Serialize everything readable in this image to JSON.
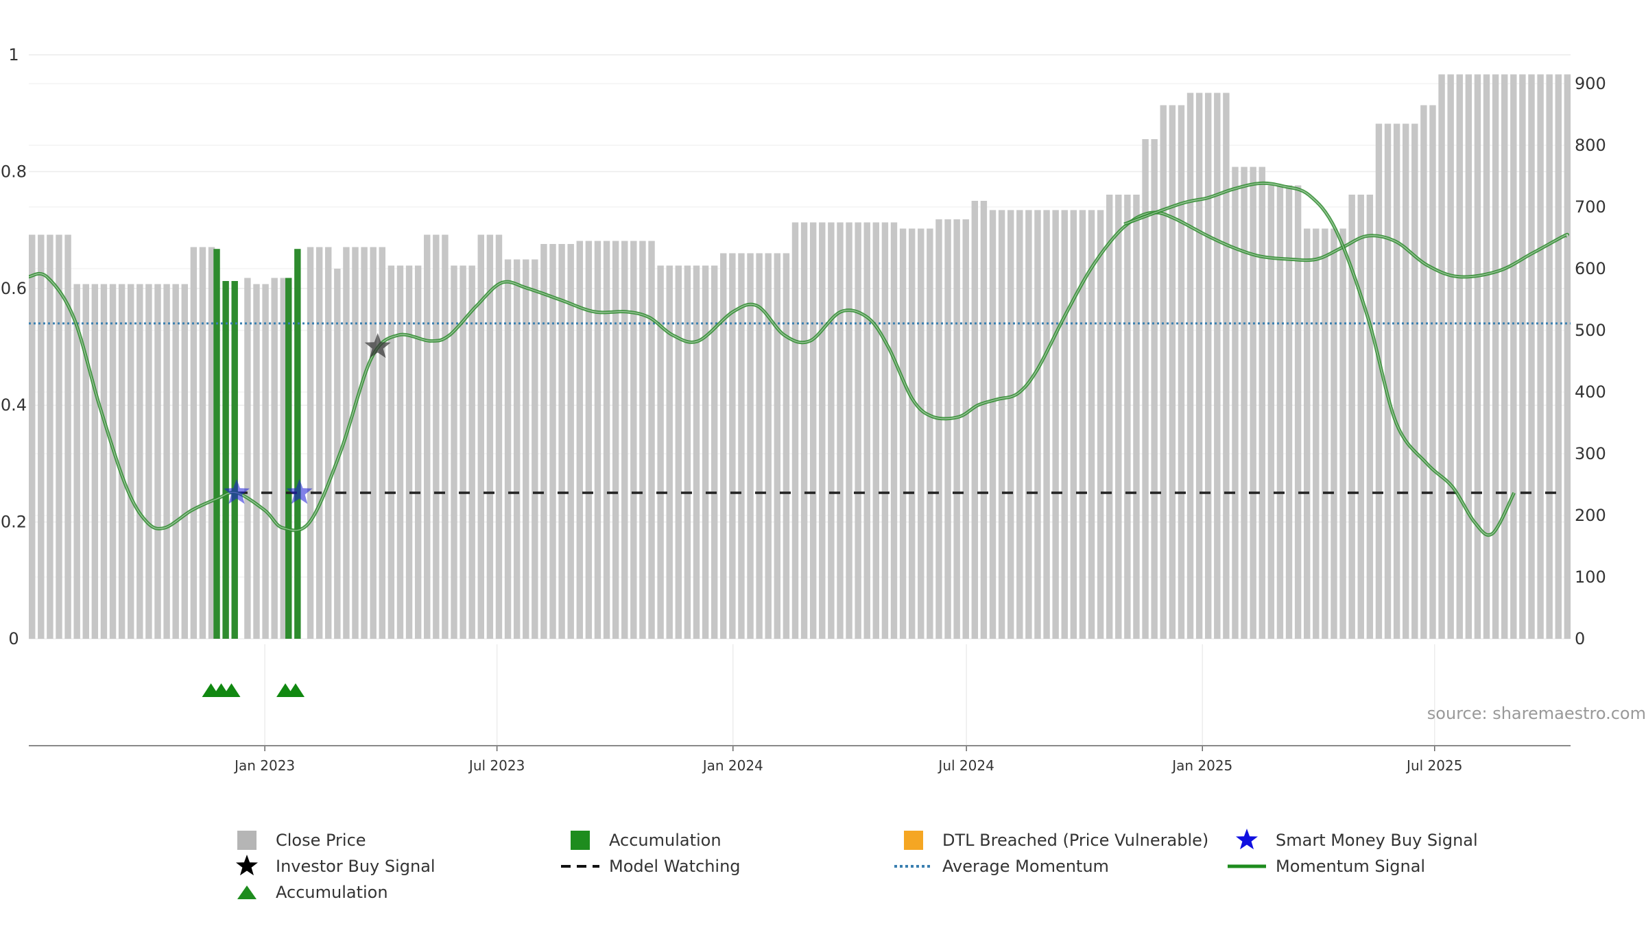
{
  "chart_data": {
    "type": "bar",
    "title": "",
    "source": "source: sharemaestro.com",
    "x_axis": {
      "range": [
        "2022-07-01",
        "2025-10-15"
      ],
      "ticks": [
        {
          "date": "2023-01-01",
          "label": "Jan 2023"
        },
        {
          "date": "2023-07-01",
          "label": "Jul 2023"
        },
        {
          "date": "2024-01-01",
          "label": "Jan 2024"
        },
        {
          "date": "2024-07-01",
          "label": "Jul 2024"
        },
        {
          "date": "2025-01-01",
          "label": "Jan 2025"
        },
        {
          "date": "2025-07-01",
          "label": "Jul 2025"
        }
      ]
    },
    "y_left": {
      "range": [
        0,
        1
      ],
      "ticks": [
        {
          "v": 0,
          "label": "0"
        },
        {
          "v": 0.2,
          "label": "0.2"
        },
        {
          "v": 0.4,
          "label": "0.4"
        },
        {
          "v": 0.6,
          "label": "0.6"
        },
        {
          "v": 0.8,
          "label": "0.8"
        },
        {
          "v": 1,
          "label": "1"
        }
      ]
    },
    "y_right": {
      "range": [
        0,
        960
      ],
      "ticks": [
        {
          "v": 0,
          "label": "0"
        },
        {
          "v": 100,
          "label": "100"
        },
        {
          "v": 200,
          "label": "200"
        },
        {
          "v": 300,
          "label": "300"
        },
        {
          "v": 400,
          "label": "400"
        },
        {
          "v": 500,
          "label": "500"
        },
        {
          "v": 600,
          "label": "600"
        },
        {
          "v": 700,
          "label": "700"
        },
        {
          "v": 800,
          "label": "800"
        },
        {
          "v": 900,
          "label": "900"
        }
      ]
    },
    "grid": true,
    "colors": {
      "close_price": "#c6c6c6",
      "accumulation": "#2e8b2e",
      "dtl": "#f5a623",
      "smart_money": "#1a1ad6",
      "investor": "#000000",
      "model_watching": "#222222",
      "average_momentum": "#3a7fb0",
      "momentum": "#2e8b2e"
    },
    "close_price": [
      {
        "x": "2022-07-01",
        "y": 655
      },
      {
        "x": "2022-08-01",
        "y": 575
      },
      {
        "x": "2022-10-01",
        "y": 575
      },
      {
        "x": "2022-11-01",
        "y": 635
      },
      {
        "x": "2022-11-20",
        "y": 585
      },
      {
        "x": "2022-12-20",
        "y": 575
      },
      {
        "x": "2023-01-01",
        "y": 585
      },
      {
        "x": "2023-02-01",
        "y": 635
      },
      {
        "x": "2023-02-20",
        "y": 600
      },
      {
        "x": "2023-03-01",
        "y": 635
      },
      {
        "x": "2023-04-01",
        "y": 605
      },
      {
        "x": "2023-05-01",
        "y": 655
      },
      {
        "x": "2023-05-20",
        "y": 605
      },
      {
        "x": "2023-06-15",
        "y": 655
      },
      {
        "x": "2023-07-01",
        "y": 615
      },
      {
        "x": "2023-08-01",
        "y": 640
      },
      {
        "x": "2023-09-01",
        "y": 645
      },
      {
        "x": "2023-11-01",
        "y": 605
      },
      {
        "x": "2023-12-20",
        "y": 625
      },
      {
        "x": "2024-02-15",
        "y": 675
      },
      {
        "x": "2024-05-10",
        "y": 665
      },
      {
        "x": "2024-06-01",
        "y": 680
      },
      {
        "x": "2024-07-01",
        "y": 710
      },
      {
        "x": "2024-07-15",
        "y": 695
      },
      {
        "x": "2024-09-01",
        "y": 695
      },
      {
        "x": "2024-10-15",
        "y": 720
      },
      {
        "x": "2024-11-10",
        "y": 810
      },
      {
        "x": "2024-11-25",
        "y": 865
      },
      {
        "x": "2024-12-20",
        "y": 885
      },
      {
        "x": "2025-01-20",
        "y": 765
      },
      {
        "x": "2025-02-15",
        "y": 735
      },
      {
        "x": "2025-03-15",
        "y": 665
      },
      {
        "x": "2025-04-25",
        "y": 720
      },
      {
        "x": "2025-05-15",
        "y": 835
      },
      {
        "x": "2025-06-15",
        "y": 865
      },
      {
        "x": "2025-07-01",
        "y": 915
      },
      {
        "x": "2025-10-12",
        "y": 915
      }
    ],
    "accumulation_bars": [
      {
        "x": "2022-11-22",
        "y": 632
      },
      {
        "x": "2022-11-29",
        "y": 580
      },
      {
        "x": "2022-12-06",
        "y": 580
      },
      {
        "x": "2023-01-17",
        "y": 585
      },
      {
        "x": "2023-01-24",
        "y": 632
      }
    ],
    "model_watching": {
      "y": 0.25,
      "from": "2022-12-10",
      "to": "2025-10-12"
    },
    "average_momentum": {
      "y": 0.54
    },
    "momentum": [
      {
        "x": "2022-07-01",
        "y": 0.62
      },
      {
        "x": "2022-07-15",
        "y": 0.62
      },
      {
        "x": "2022-08-05",
        "y": 0.55
      },
      {
        "x": "2022-08-25",
        "y": 0.4
      },
      {
        "x": "2022-09-15",
        "y": 0.26
      },
      {
        "x": "2022-10-01",
        "y": 0.2
      },
      {
        "x": "2022-10-15",
        "y": 0.19
      },
      {
        "x": "2022-11-05",
        "y": 0.22
      },
      {
        "x": "2022-11-25",
        "y": 0.24
      },
      {
        "x": "2022-12-10",
        "y": 0.25
      },
      {
        "x": "2023-01-01",
        "y": 0.22
      },
      {
        "x": "2023-01-15",
        "y": 0.19
      },
      {
        "x": "2023-02-05",
        "y": 0.2
      },
      {
        "x": "2023-03-01",
        "y": 0.32
      },
      {
        "x": "2023-03-25",
        "y": 0.48
      },
      {
        "x": "2023-04-15",
        "y": 0.52
      },
      {
        "x": "2023-05-10",
        "y": 0.51
      },
      {
        "x": "2023-05-25",
        "y": 0.52
      },
      {
        "x": "2023-06-15",
        "y": 0.57
      },
      {
        "x": "2023-07-05",
        "y": 0.61
      },
      {
        "x": "2023-07-25",
        "y": 0.6
      },
      {
        "x": "2023-08-20",
        "y": 0.58
      },
      {
        "x": "2023-09-15",
        "y": 0.56
      },
      {
        "x": "2023-10-10",
        "y": 0.56
      },
      {
        "x": "2023-10-28",
        "y": 0.55
      },
      {
        "x": "2023-11-15",
        "y": 0.52
      },
      {
        "x": "2023-12-05",
        "y": 0.51
      },
      {
        "x": "2024-01-01",
        "y": 0.56
      },
      {
        "x": "2024-01-20",
        "y": 0.57
      },
      {
        "x": "2024-02-10",
        "y": 0.52
      },
      {
        "x": "2024-03-01",
        "y": 0.51
      },
      {
        "x": "2024-03-25",
        "y": 0.56
      },
      {
        "x": "2024-04-15",
        "y": 0.55
      },
      {
        "x": "2024-05-01",
        "y": 0.5
      },
      {
        "x": "2024-05-20",
        "y": 0.41
      },
      {
        "x": "2024-06-05",
        "y": 0.38
      },
      {
        "x": "2024-06-25",
        "y": 0.38
      },
      {
        "x": "2024-07-10",
        "y": 0.4
      },
      {
        "x": "2024-07-25",
        "y": 0.41
      },
      {
        "x": "2024-08-10",
        "y": 0.42
      },
      {
        "x": "2024-08-25",
        "y": 0.46
      },
      {
        "x": "2024-09-15",
        "y": 0.55
      },
      {
        "x": "2024-10-05",
        "y": 0.63
      },
      {
        "x": "2024-10-25",
        "y": 0.69
      },
      {
        "x": "2024-11-10",
        "y": 0.72
      },
      {
        "x": "2024-11-25",
        "y": 0.73
      },
      {
        "x": "2024-12-10",
        "y": 0.72
      },
      {
        "x": "2025-01-05",
        "y": 0.69
      },
      {
        "x": "2025-01-25",
        "y": 0.67
      },
      {
        "x": "2025-02-15",
        "y": 0.655
      },
      {
        "x": "2025-03-10",
        "y": 0.65
      },
      {
        "x": "2025-03-31",
        "y": 0.65
      },
      {
        "x": "2025-04-20",
        "y": 0.67
      },
      {
        "x": "2025-05-10",
        "y": 0.69
      },
      {
        "x": "2025-06-01",
        "y": 0.68
      },
      {
        "x": "2025-06-25",
        "y": 0.64
      },
      {
        "x": "2025-07-20",
        "y": 0.62
      },
      {
        "x": "2025-08-20",
        "y": 0.63
      },
      {
        "x": "2025-09-15",
        "y": 0.66
      },
      {
        "x": "2025-10-10",
        "y": 0.69
      },
      {
        "x": "2025-10-12",
        "y": 0.69
      }
    ],
    "momentum_late": [
      {
        "x": "2024-11-01",
        "y": 0.71
      },
      {
        "x": "2024-12-15",
        "y": 0.745
      },
      {
        "x": "2025-01-05",
        "y": 0.755
      },
      {
        "x": "2025-01-25",
        "y": 0.77
      },
      {
        "x": "2025-02-15",
        "y": 0.78
      },
      {
        "x": "2025-03-05",
        "y": 0.775
      },
      {
        "x": "2025-03-25",
        "y": 0.76
      },
      {
        "x": "2025-04-15",
        "y": 0.7
      },
      {
        "x": "2025-05-10",
        "y": 0.55
      },
      {
        "x": "2025-06-01",
        "y": 0.37
      },
      {
        "x": "2025-06-25",
        "y": 0.3
      },
      {
        "x": "2025-07-15",
        "y": 0.26
      },
      {
        "x": "2025-08-01",
        "y": 0.2
      },
      {
        "x": "2025-08-15",
        "y": 0.18
      },
      {
        "x": "2025-09-01",
        "y": 0.25
      }
    ],
    "smart_money_signals": [
      {
        "x": "2022-12-10",
        "y": 0.25
      },
      {
        "x": "2023-01-28",
        "y": 0.25
      }
    ],
    "investor_signals": [
      {
        "x": "2023-03-30",
        "y": 0.5
      }
    ],
    "accumulation_markers": [
      {
        "x": "2022-11-20"
      },
      {
        "x": "2022-11-28"
      },
      {
        "x": "2022-12-06"
      },
      {
        "x": "2023-01-17"
      },
      {
        "x": "2023-01-25"
      }
    ],
    "legend": [
      {
        "label": "Close Price",
        "symbol": "grey-square"
      },
      {
        "label": "Accumulation",
        "symbol": "green-square"
      },
      {
        "label": "DTL Breached (Price Vulnerable)",
        "symbol": "orange-square"
      },
      {
        "label": "Smart Money Buy Signal",
        "symbol": "blue-star"
      },
      {
        "label": "Investor Buy Signal",
        "symbol": "black-star"
      },
      {
        "label": "Model Watching",
        "symbol": "black-dashed-line"
      },
      {
        "label": "Average Momentum",
        "symbol": "blue-dotted-line"
      },
      {
        "label": "Momentum Signal",
        "symbol": "green-line"
      },
      {
        "label": "Accumulation",
        "symbol": "green-triangle"
      }
    ]
  }
}
